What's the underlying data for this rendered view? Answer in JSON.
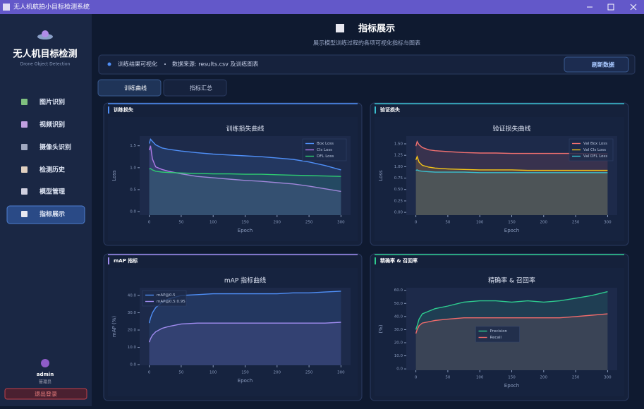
{
  "window": {
    "title": "无人机航拍小目标检测系统"
  },
  "sidebar": {
    "app_title": "无人机目标检测",
    "app_subtitle": "Drone Object Detection",
    "nav": [
      "图片识别",
      "视频识别",
      "摄像头识别",
      "检测历史",
      "模型管理",
      "指标展示"
    ],
    "user": {
      "name": "admin",
      "role": "管理员"
    },
    "logout": "退出登录"
  },
  "header": {
    "title": "指标展示",
    "subtitle": "展示模型训练过程的各项可视化指标与图表"
  },
  "info_bar": {
    "label": "训练结果可视化",
    "source": "数据来源: results.csv 及训练图表",
    "refresh": "刷新数据"
  },
  "tabs": [
    "训练曲线",
    "指标汇总"
  ],
  "panels": [
    {
      "heading": "训练损失"
    },
    {
      "heading": "验证损失"
    },
    {
      "heading": "mAP 指标"
    },
    {
      "heading": "精确率 & 召回率"
    }
  ],
  "chart_data": [
    {
      "type": "line",
      "title": "训练损失曲线",
      "x_label": "Epoch",
      "y_label": "Loss",
      "legend": "upper right",
      "grid": false,
      "x": [
        0,
        2,
        5,
        10,
        20,
        30,
        50,
        75,
        100,
        125,
        150,
        175,
        200,
        225,
        250,
        275,
        300
      ],
      "xlim": [
        -15,
        315
      ],
      "xticks": [
        0,
        50,
        100,
        150,
        200,
        250,
        300
      ],
      "ylim": [
        -0.08,
        1.72
      ],
      "yticks": [
        {
          "value": 0,
          "label": "0.0"
        },
        0.5,
        {
          "value": 1,
          "label": "1.0"
        },
        1.5
      ],
      "series": [
        {
          "name": "Box Loss",
          "color": "#4f8ff7",
          "values": [
            1.55,
            1.65,
            1.6,
            1.52,
            1.45,
            1.42,
            1.38,
            1.34,
            1.31,
            1.29,
            1.27,
            1.25,
            1.22,
            1.19,
            1.13,
            1.05,
            0.95
          ]
        },
        {
          "name": "Cls Loss",
          "color": "#b07ce8",
          "values": [
            1.4,
            1.5,
            1.2,
            1.02,
            0.96,
            0.92,
            0.86,
            0.8,
            0.77,
            0.74,
            0.71,
            0.69,
            0.66,
            0.63,
            0.58,
            0.52,
            0.46
          ]
        },
        {
          "name": "DFL Loss",
          "color": "#2ecc71",
          "values": [
            0.97,
            0.98,
            0.95,
            0.92,
            0.9,
            0.89,
            0.88,
            0.87,
            0.86,
            0.86,
            0.85,
            0.85,
            0.84,
            0.83,
            0.82,
            0.81,
            0.8
          ]
        }
      ]
    },
    {
      "type": "line",
      "title": "验证损失曲线",
      "x_label": "Epoch",
      "y_label": "Loss",
      "legend": "upper right",
      "grid": false,
      "x": [
        0,
        2,
        5,
        10,
        20,
        30,
        50,
        75,
        100,
        125,
        150,
        175,
        200,
        225,
        250,
        275,
        300
      ],
      "xlim": [
        -15,
        315
      ],
      "xticks": [
        0,
        50,
        100,
        150,
        200,
        250,
        300
      ],
      "ylim": [
        -0.06,
        1.67
      ],
      "yticks": [
        {
          "value": 0,
          "label": "0.00"
        },
        0.25,
        {
          "value": 0.5,
          "label": "0.50"
        },
        0.75,
        {
          "value": 1,
          "label": "1.00"
        },
        1.25,
        {
          "value": 1.5,
          "label": "1.50"
        }
      ],
      "series": [
        {
          "name": "Val Box Loss",
          "color": "#f07070",
          "values": [
            1.45,
            1.55,
            1.48,
            1.42,
            1.37,
            1.35,
            1.33,
            1.31,
            1.3,
            1.3,
            1.29,
            1.29,
            1.29,
            1.29,
            1.29,
            1.28,
            1.28
          ]
        },
        {
          "name": "Val Cls Loss",
          "color": "#f5c518",
          "values": [
            1.15,
            1.22,
            1.1,
            1.03,
            0.99,
            0.97,
            0.95,
            0.94,
            0.93,
            0.93,
            0.93,
            0.92,
            0.92,
            0.92,
            0.92,
            0.92,
            0.92
          ]
        },
        {
          "name": "Val DFL Loss",
          "color": "#3ac0d0",
          "values": [
            0.92,
            0.93,
            0.91,
            0.9,
            0.89,
            0.88,
            0.88,
            0.88,
            0.87,
            0.87,
            0.87,
            0.87,
            0.87,
            0.87,
            0.87,
            0.87,
            0.87
          ]
        }
      ]
    },
    {
      "type": "line",
      "title": "mAP 指标曲线",
      "x_label": "Epoch",
      "y_label": "mAP (%)",
      "legend": "upper left",
      "grid": false,
      "x": [
        0,
        2,
        5,
        10,
        20,
        30,
        50,
        75,
        100,
        125,
        150,
        175,
        200,
        225,
        250,
        275,
        300
      ],
      "xlim": [
        -15,
        315
      ],
      "xticks": [
        0,
        50,
        100,
        150,
        200,
        250,
        300
      ],
      "ylim": [
        -0.4,
        44.5
      ],
      "yticks": [
        {
          "value": 0,
          "label": "0.0"
        },
        {
          "value": 10,
          "label": "10.0"
        },
        {
          "value": 20,
          "label": "20.0"
        },
        {
          "value": 30,
          "label": "30.0"
        },
        {
          "value": 40,
          "label": "40.0"
        }
      ],
      "series": [
        {
          "name": "mAP@0.5",
          "color": "#4f8ff7",
          "values": [
            24,
            27,
            30,
            33,
            36,
            38,
            40,
            40.5,
            41,
            41,
            41,
            41,
            41,
            41.5,
            41.5,
            42,
            42.5
          ]
        },
        {
          "name": "mAP@0.5:0.95",
          "color": "#a08cf0",
          "values": [
            13,
            15,
            17,
            19,
            21,
            22,
            23.5,
            24,
            24,
            24,
            24,
            24,
            24,
            24,
            24,
            24,
            24.5
          ]
        }
      ]
    },
    {
      "type": "line",
      "title": "精确率 & 召回率",
      "x_label": "Epoch",
      "y_label": "(%)",
      "legend": "lower center",
      "grid": false,
      "x": [
        0,
        2,
        5,
        10,
        20,
        30,
        50,
        75,
        100,
        125,
        150,
        175,
        200,
        225,
        250,
        275,
        300
      ],
      "xlim": [
        -15,
        315
      ],
      "xticks": [
        0,
        50,
        100,
        150,
        200,
        250,
        300
      ],
      "ylim": [
        -1,
        62
      ],
      "yticks": [
        {
          "value": 0,
          "label": "0.0"
        },
        {
          "value": 10,
          "label": "10.0"
        },
        {
          "value": 20,
          "label": "20.0"
        },
        {
          "value": 30,
          "label": "30.0"
        },
        {
          "value": 40,
          "label": "40.0"
        },
        {
          "value": 50,
          "label": "50.0"
        },
        {
          "value": 60,
          "label": "60.0"
        }
      ],
      "series": [
        {
          "name": "Precision",
          "color": "#2ecc8f",
          "values": [
            30,
            33,
            38,
            42,
            44,
            46,
            48,
            51,
            52,
            52,
            51,
            52,
            51,
            52,
            54,
            56,
            59
          ]
        },
        {
          "name": "Recall",
          "color": "#f06b6b",
          "values": [
            27,
            30,
            33,
            35,
            36,
            37,
            38,
            39,
            39,
            39,
            39,
            39,
            39,
            39,
            40,
            41,
            42
          ]
        }
      ]
    }
  ]
}
